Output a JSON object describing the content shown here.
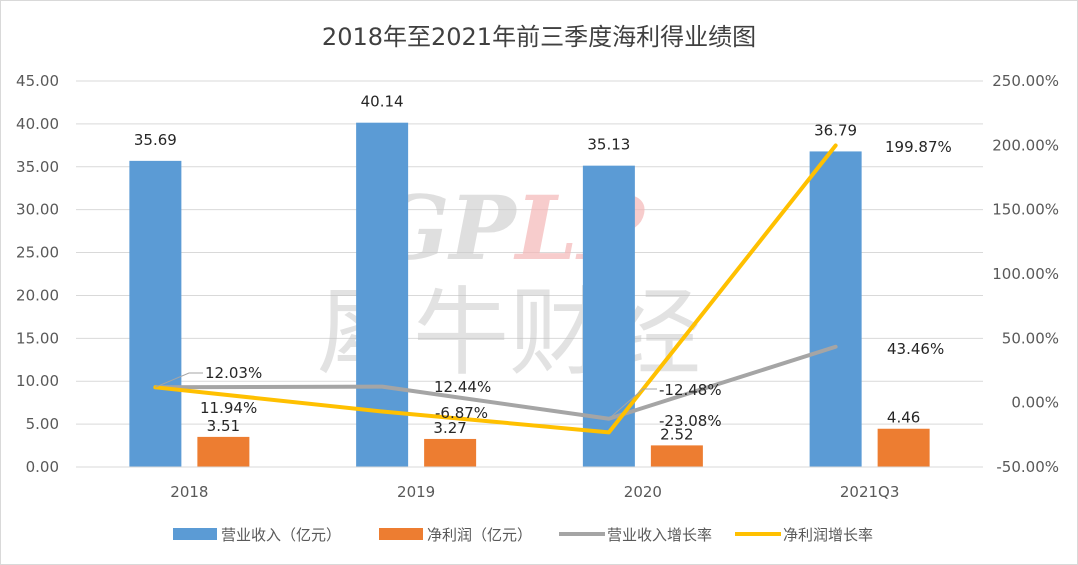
{
  "chart_data": {
    "type": "bar",
    "title": "2018年至2021年前三季度海利得业绩图",
    "categories": [
      "2018",
      "2019",
      "2020",
      "2021Q3"
    ],
    "y_left": {
      "min": 0,
      "max": 45,
      "step": 5,
      "tick_labels": [
        "0.00",
        "5.00",
        "10.00",
        "15.00",
        "20.00",
        "25.00",
        "30.00",
        "35.00",
        "40.00",
        "45.00"
      ]
    },
    "y_right": {
      "min": -50,
      "max": 250,
      "step": 50,
      "tick_labels": [
        "-50.00%",
        "0.00%",
        "50.00%",
        "100.00%",
        "150.00%",
        "200.00%",
        "250.00%"
      ]
    },
    "grid": true,
    "legend_position": "bottom",
    "series": [
      {
        "name": "营业收入（亿元）",
        "kind": "bar",
        "axis": "left",
        "color": "#5b9bd5",
        "values": [
          35.69,
          40.14,
          35.13,
          36.79
        ],
        "labels": [
          "35.69",
          "40.14",
          "35.13",
          "36.79"
        ]
      },
      {
        "name": "净利润（亿元）",
        "kind": "bar",
        "axis": "left",
        "color": "#ed7d31",
        "values": [
          3.51,
          3.27,
          2.52,
          4.46
        ],
        "labels": [
          "3.51",
          "3.27",
          "2.52",
          "4.46"
        ]
      },
      {
        "name": "营业收入增长率",
        "kind": "line",
        "axis": "right",
        "color": "#a5a5a5",
        "values": [
          12.03,
          12.44,
          -12.48,
          43.46
        ],
        "labels": [
          "12.03%",
          "12.44%",
          "-12.48%",
          "43.46%"
        ]
      },
      {
        "name": "净利润增长率",
        "kind": "line",
        "axis": "right",
        "color": "#ffc000",
        "values": [
          11.94,
          -6.87,
          -23.08,
          199.87
        ],
        "labels": [
          "11.94%",
          "-6.87%",
          "-23.08%",
          "199.87%"
        ]
      }
    ]
  },
  "watermark": {
    "latin": "GPLP",
    "chinese": "犀牛财经"
  }
}
